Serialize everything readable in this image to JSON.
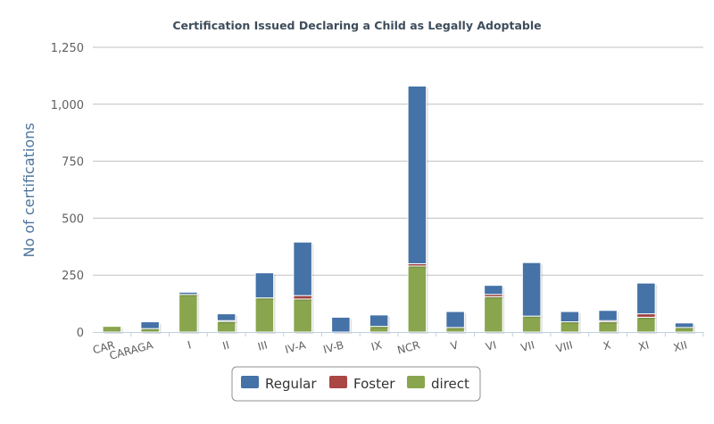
{
  "chart_data": {
    "type": "bar",
    "stacked": true,
    "title": "Certification Issued Declaring a Child as Legally Adoptable",
    "ylabel": "No of certifications",
    "xlabel": "",
    "ylim": [
      0,
      1250
    ],
    "yticks": [
      0,
      250,
      500,
      750,
      1000,
      1250
    ],
    "ytick_labels": [
      "0",
      "250",
      "500",
      "750",
      "1,000",
      "1,250"
    ],
    "grid": true,
    "legend_position": "bottom-center",
    "categories": [
      "CAR",
      "CARAGA",
      "I",
      "II",
      "III",
      "IV-A",
      "IV-B",
      "IX",
      "NCR",
      "V",
      "VI",
      "VII",
      "VIII",
      "X",
      "XI",
      "XII"
    ],
    "series": [
      {
        "name": "direct",
        "color": "#89a54e",
        "values": [
          25,
          15,
          165,
          48,
          150,
          145,
          0,
          25,
          290,
          20,
          155,
          70,
          45,
          45,
          65,
          20
        ]
      },
      {
        "name": "Foster",
        "color": "#aa4643",
        "values": [
          0,
          0,
          0,
          2,
          0,
          15,
          0,
          0,
          10,
          0,
          10,
          0,
          0,
          5,
          15,
          0
        ]
      },
      {
        "name": "Regular",
        "color": "#4572a7",
        "values": [
          0,
          30,
          10,
          30,
          110,
          235,
          65,
          50,
          780,
          70,
          40,
          235,
          45,
          45,
          135,
          20
        ]
      }
    ],
    "legend_order": [
      "Regular",
      "Foster",
      "direct"
    ]
  }
}
